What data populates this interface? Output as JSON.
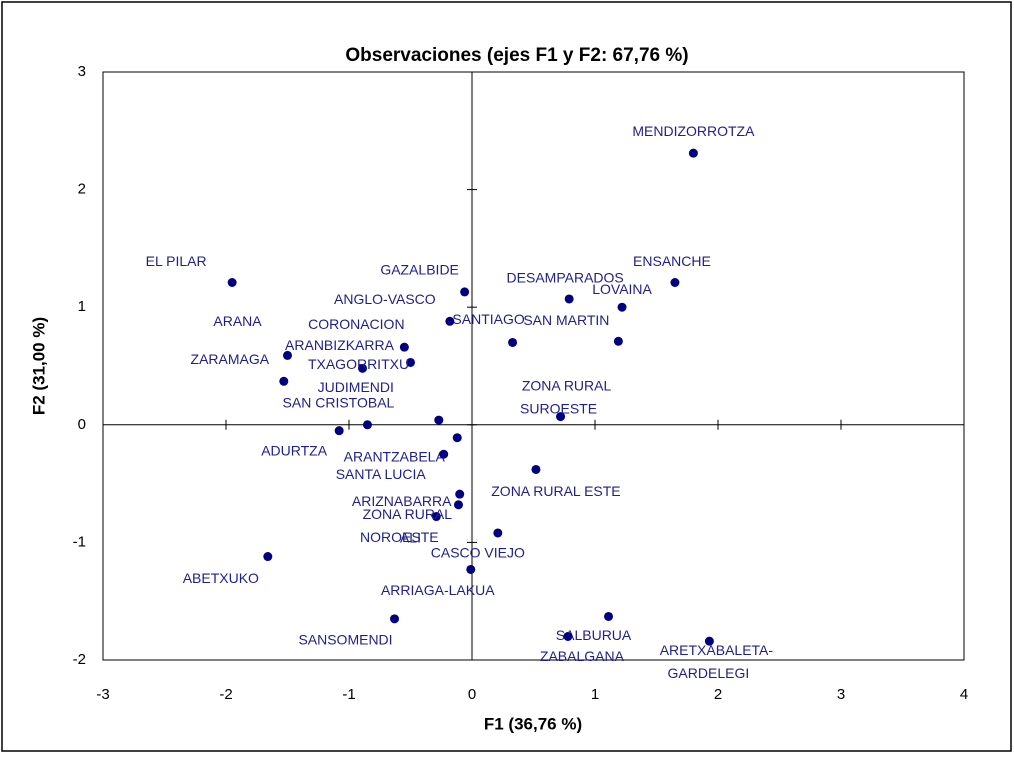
{
  "chart_data": {
    "type": "scatter",
    "title": "Observaciones (ejes F1 y F2: 67,76 %)",
    "x_label": "F1 (36,76 %)",
    "y_label": "F2 (31,00 %)",
    "color": "#000080",
    "xlim": [
      -3,
      4
    ],
    "xticks": [
      -3,
      -2,
      -1,
      0,
      1,
      2,
      3,
      4
    ],
    "ylim": [
      -2,
      3
    ],
    "yticks": [
      -2,
      -1,
      0,
      1,
      2,
      3
    ],
    "labels": [
      "MENDIZORROTZA",
      "ENSANCHE",
      "LOVAINA",
      "SAN MARTIN",
      "DESAMPARADOS",
      "SANTIAGO",
      "GAZALBIDE",
      "ANGLO-VASCO",
      "EL PILAR",
      "CORONACION",
      "ARANBIZKARRA",
      "ARANA",
      "TXAGORRITXU",
      "ZARAMAGA",
      "JUDIMENDI",
      "SAN CRISTOBAL",
      [
        "ZONA RURAL",
        "SUROESTE"
      ],
      "ADURTZA",
      "ARANTZABELA",
      "SANTA LUCIA",
      "ZONA RURAL ESTE",
      "ARIZNABARRA",
      [
        "ZONA RURAL",
        "NOROESTE"
      ],
      "ALI",
      "CASCO VIEJO",
      "ARRIAGA-LAKUA",
      "ABETXUKO",
      "SANSOMENDI",
      "SALBURUA",
      "ZABALGANA",
      [
        "ARETXABALETA-",
        "GARDELEGI"
      ]
    ],
    "x": [
      1.8,
      1.65,
      1.22,
      1.19,
      0.79,
      0.33,
      -0.06,
      -0.18,
      -1.95,
      -0.55,
      -0.5,
      -1.5,
      -0.89,
      -1.53,
      -0.27,
      -0.85,
      0.72,
      -1.08,
      -0.12,
      -0.23,
      0.52,
      -0.1,
      -0.29,
      -0.11,
      0.21,
      -0.01,
      -1.66,
      -0.63,
      1.11,
      0.78,
      1.93
    ],
    "y": [
      2.31,
      1.21,
      1.0,
      0.71,
      1.07,
      0.7,
      1.13,
      0.88,
      1.21,
      0.66,
      0.53,
      0.59,
      0.48,
      0.37,
      0.04,
      0.0,
      0.07,
      -0.05,
      -0.11,
      -0.25,
      -0.38,
      -0.59,
      -0.78,
      -0.68,
      -0.92,
      -1.23,
      -1.12,
      -1.65,
      -1.63,
      -1.8,
      -1.84
    ]
  }
}
